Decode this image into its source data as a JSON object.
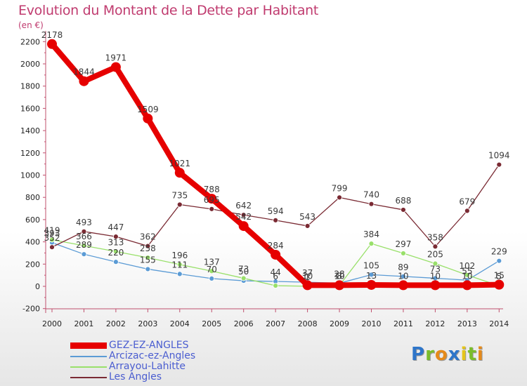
{
  "title": "Evolution du Montant de la Dette par Habitant",
  "unit": "(en €)",
  "logo": [
    "P",
    "r",
    "o",
    "x",
    "i",
    "t",
    "i"
  ],
  "logo_colors": [
    "#2e75c9",
    "#7abd2b",
    "#e58a1a",
    "#2e75c9",
    "#e5c51a",
    "#7abd2b",
    "#e58a1a"
  ],
  "chart_data": {
    "type": "line",
    "x": [
      2000,
      2001,
      2002,
      2003,
      2004,
      2005,
      2006,
      2007,
      2008,
      2009,
      2010,
      2011,
      2012,
      2013,
      2014
    ],
    "yticks": [
      -200,
      0,
      200,
      400,
      600,
      800,
      1000,
      1200,
      1400,
      1600,
      1800,
      2000,
      2200
    ],
    "ylim": [
      -200,
      2200
    ],
    "grid": false,
    "legend_position": "bottom-left",
    "series": [
      {
        "name": "GEZ-EZ-ANGLES",
        "color": "#e60000",
        "width": 8,
        "marker": 7,
        "values": [
          2178,
          1844,
          1971,
          1509,
          1021,
          788,
          542,
          284,
          10,
          10,
          13,
          10,
          10,
          10,
          15
        ],
        "labels": [
          "2178",
          "1844",
          "1971",
          "1509",
          "1021",
          "788",
          "542",
          "284",
          "10",
          "10",
          "13",
          "10",
          "10",
          "10",
          "15"
        ]
      },
      {
        "name": "Arcizac-ez-Angles",
        "color": "#5b9bd5",
        "width": 1.3,
        "marker": 3.5,
        "values": [
          393,
          289,
          220,
          155,
          111,
          70,
          50,
          44,
          37,
          28,
          105,
          89,
          73,
          55,
          229
        ],
        "labels": [
          "393",
          "289",
          "220",
          "155",
          "111",
          "70",
          "50",
          "44",
          "37",
          "28",
          "105",
          "89",
          "73",
          "55",
          "229"
        ]
      },
      {
        "name": "Arrayou-Lahitte",
        "color": "#99e06a",
        "width": 1.3,
        "marker": 3.5,
        "values": [
          419,
          366,
          313,
          258,
          196,
          137,
          73,
          6,
          1,
          8,
          384,
          297,
          205,
          102,
          5
        ],
        "labels": [
          "419",
          "366",
          "313",
          "258",
          "196",
          "137",
          "73",
          "6",
          "1",
          "8",
          "384",
          "297",
          "205",
          "102",
          "5"
        ]
      },
      {
        "name": "Les Angles",
        "color": "#7a2a33",
        "width": 1.3,
        "marker": 3.5,
        "values": [
          352,
          493,
          447,
          362,
          735,
          695,
          642,
          594,
          543,
          799,
          740,
          688,
          358,
          679,
          1094
        ],
        "labels": [
          "352",
          "493",
          "447",
          "362",
          "735",
          "695",
          "642",
          "594",
          "543",
          "799",
          "740",
          "688",
          "358",
          "679",
          "1094"
        ]
      }
    ]
  }
}
